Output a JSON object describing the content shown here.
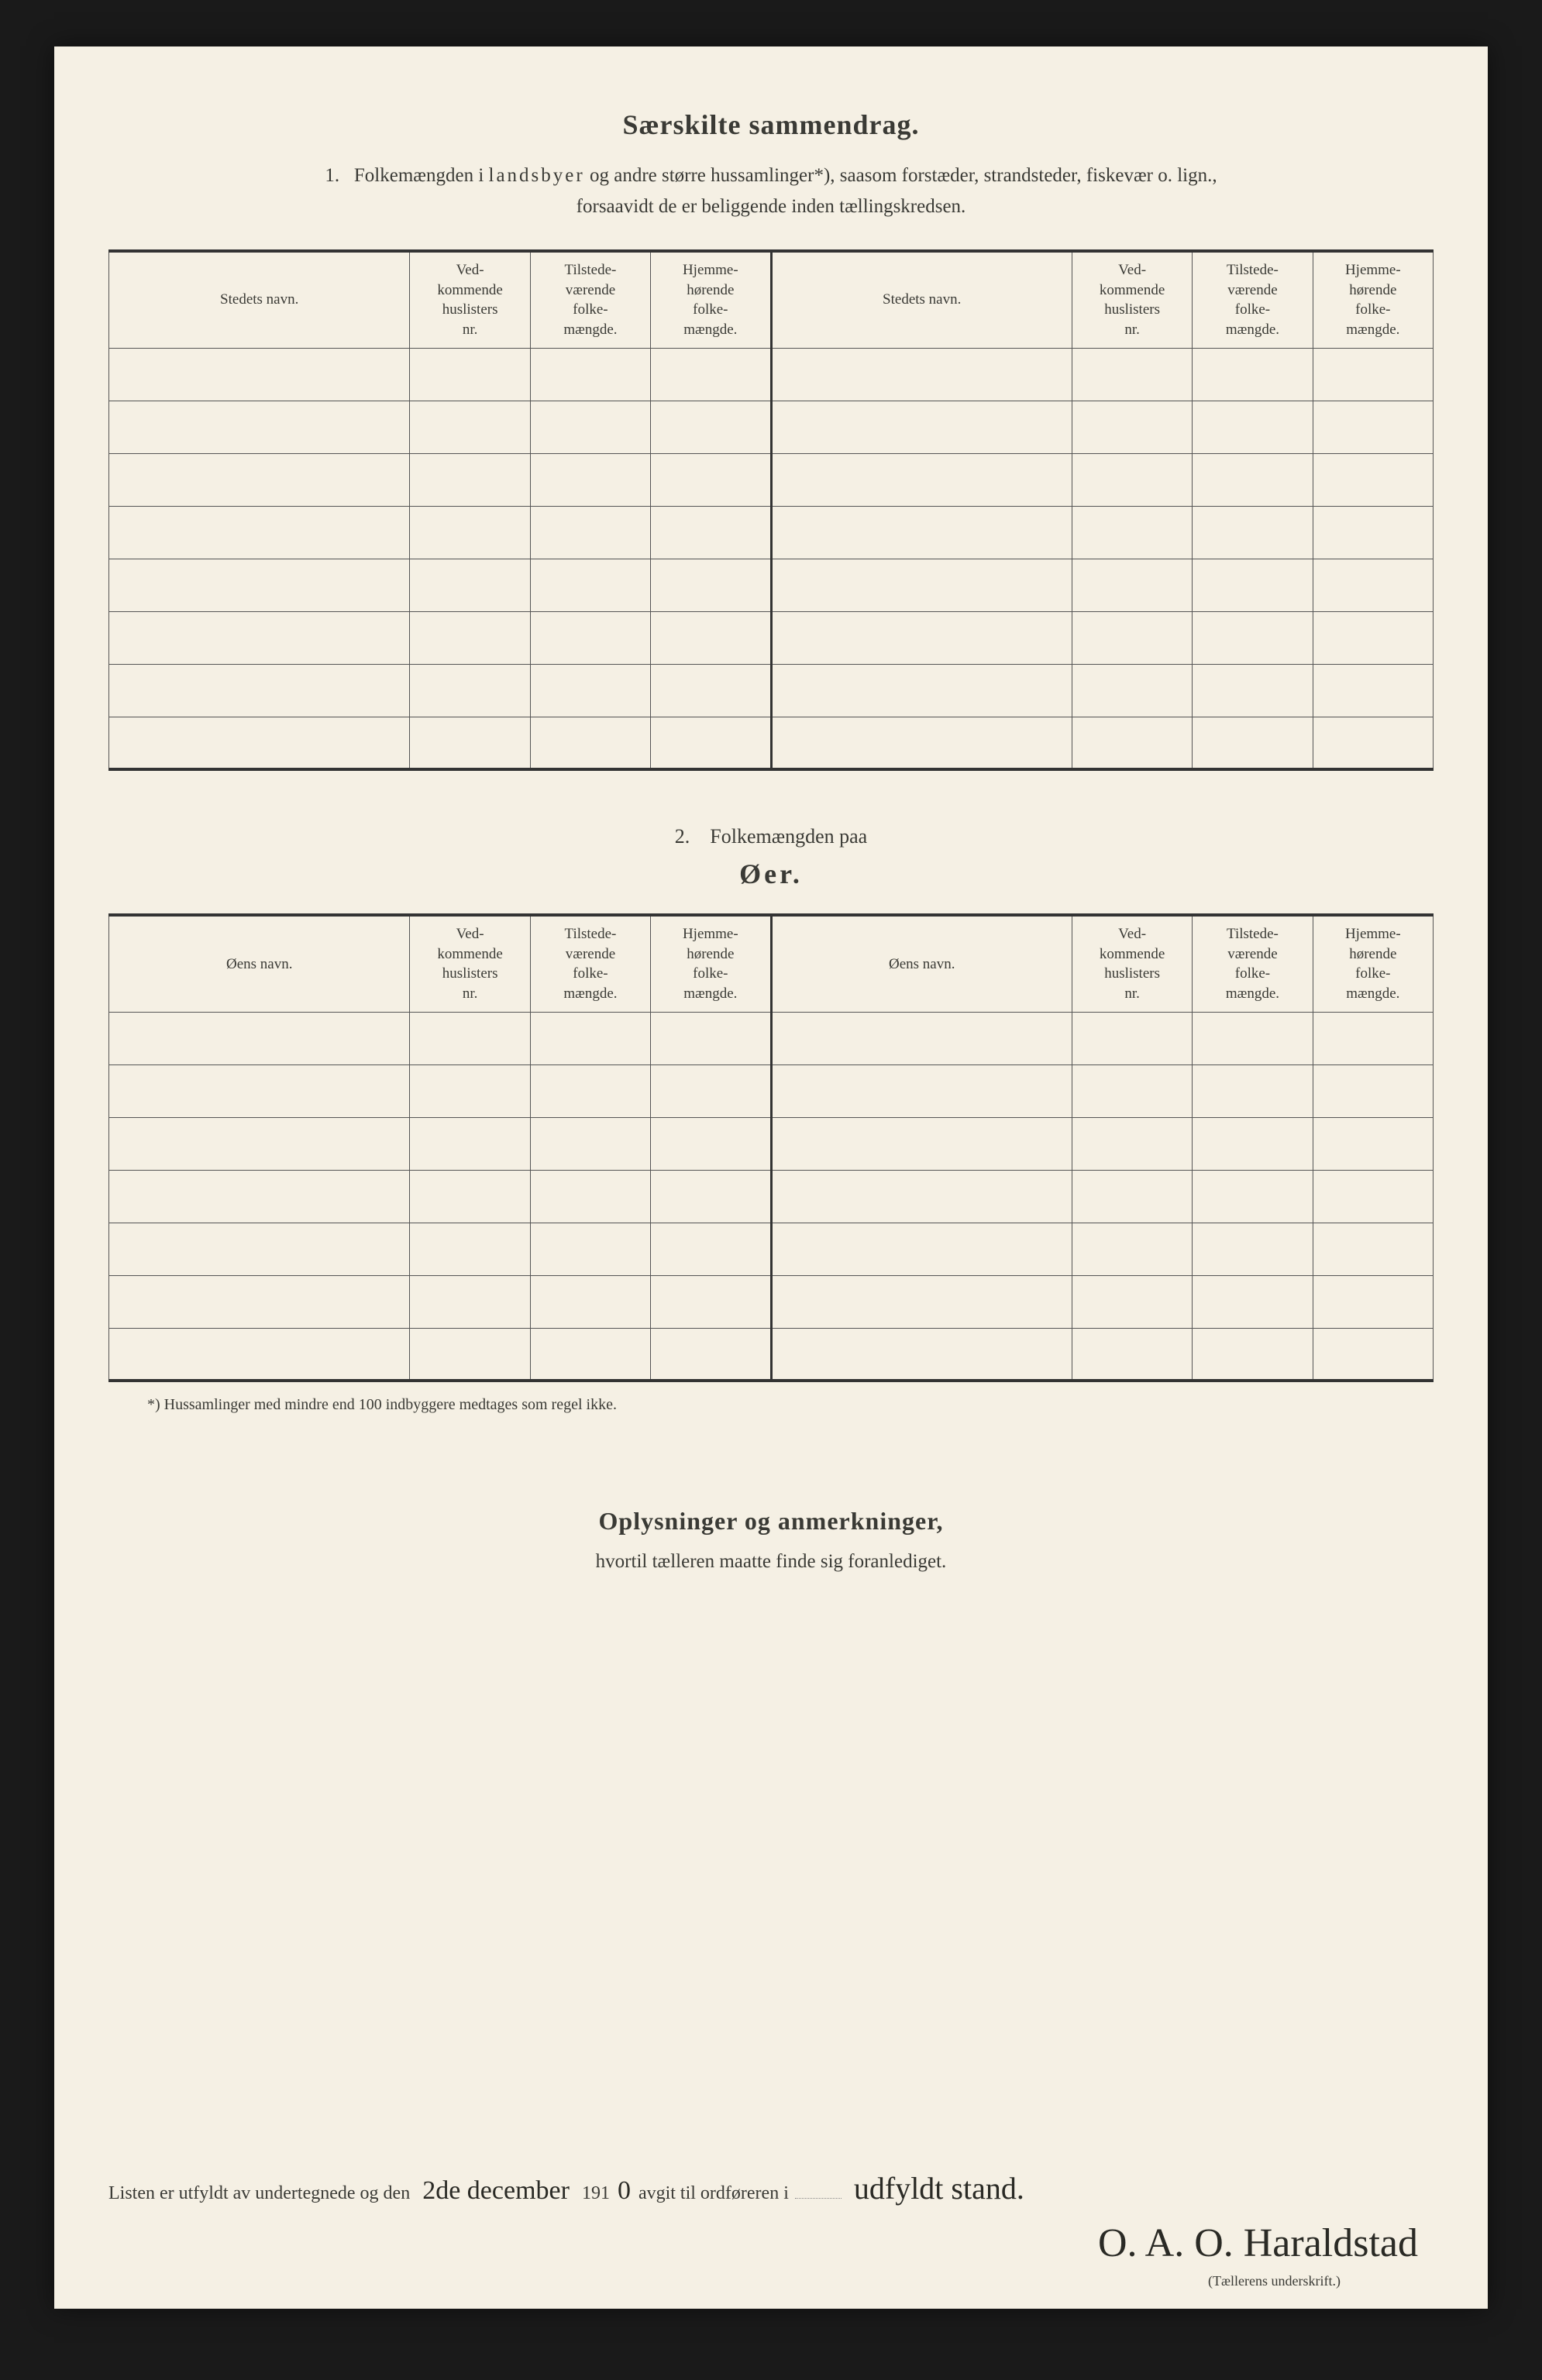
{
  "colors": {
    "page_bg": "#f5f0e4",
    "frame_bg": "#1a1a1a",
    "text": "#3a3a35",
    "border": "#555",
    "heavy_border": "#333",
    "handwriting": "#2a2a25"
  },
  "title": "Særskilte sammendrag.",
  "section1": {
    "number": "1.",
    "intro_a": "Folkemængden i ",
    "intro_spaced": "landsbyer",
    "intro_b": " og andre større hussamlinger*), saasom forstæder, strandsteder, fiskevær o. lign.,",
    "intro_c": "forsaavidt de er beliggende inden tællingskredsen.",
    "headers": {
      "name": "Stedets navn.",
      "col2": "Ved-\nkommende\nhuslisters\nnr.",
      "col3": "Tilstede-\nværende\nfolke-\nmængde.",
      "col4": "Hjemme-\nhørende\nfolke-\nmængde."
    },
    "row_count": 8
  },
  "section2": {
    "line1_a": "2.",
    "line1_b": "Folkemængden paa",
    "line2": "Øer.",
    "headers": {
      "name": "Øens navn.",
      "col2": "Ved-\nkommende\nhuslisters\nnr.",
      "col3": "Tilstede-\nværende\nfolke-\nmængde.",
      "col4": "Hjemme-\nhørende\nfolke-\nmængde."
    },
    "row_count": 7
  },
  "footnote": "*) Hussamlinger med mindre end 100 indbyggere medtages som regel ikke.",
  "oplysninger": {
    "heading": "Oplysninger og anmerkninger,",
    "sub": "hvortil tælleren maatte finde sig foranlediget."
  },
  "signature": {
    "prefix": "Listen er utfyldt av undertegnede og den",
    "date_written": "2de december",
    "year_prefix": "191",
    "year_written": "0",
    "mid": "avgit til ordføreren i",
    "status_written": "udfyldt stand.",
    "name_written": "O. A. O. Haraldstad",
    "caption": "(Tællerens underskrift.)"
  }
}
